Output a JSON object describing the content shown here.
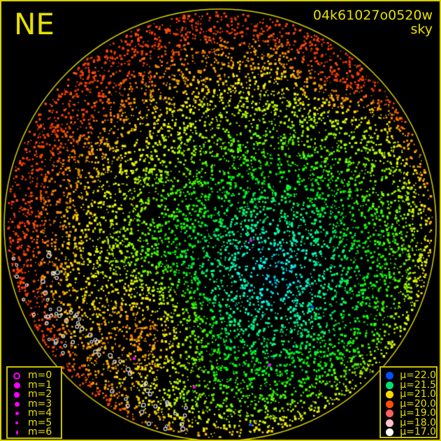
{
  "title": {
    "direction": "NE",
    "filename": "04k61027o0520w",
    "type": "sky"
  },
  "magnitude_legend": [
    {
      "label": "m=0",
      "style": "ring"
    },
    {
      "label": "m=1",
      "style": "dot"
    },
    {
      "label": "m=2",
      "style": "dot"
    },
    {
      "label": "m=3",
      "style": "dot"
    },
    {
      "label": "m=4",
      "style": "dot"
    },
    {
      "label": "m=5",
      "style": "dot"
    },
    {
      "label": "m=6",
      "style": "dot"
    }
  ],
  "magnitude_color": "#ff00ff",
  "brightness_legend": [
    {
      "label": "μ=22.0",
      "color": "#0050ff"
    },
    {
      "label": "μ=21.5",
      "color": "#00e070"
    },
    {
      "label": "μ=21.0",
      "color": "#ffd800"
    },
    {
      "label": "μ=20.0",
      "color": "#ff5000"
    },
    {
      "label": "μ=19.0",
      "color": "#ff6060"
    },
    {
      "label": "μ=18.0",
      "color": "#ffc0cc"
    },
    {
      "label": "μ=17.0",
      "color": "#ffffff"
    }
  ],
  "accent_color": "#e6e000"
}
